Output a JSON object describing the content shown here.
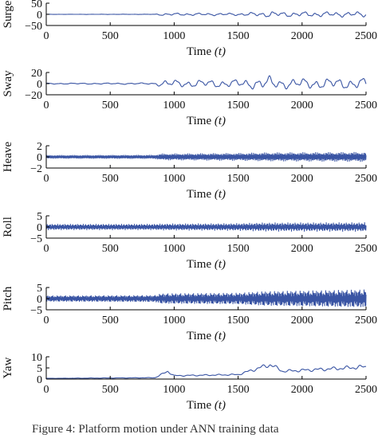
{
  "figure": {
    "caption": "F‍igure 4: Platform motion under ANN training data"
  },
  "chart_data": [
    {
      "type": "line",
      "ylabel": "Surge",
      "xlabel": "Time",
      "xlabel_var": "(t)",
      "xlim": [
        0,
        2500
      ],
      "ylim": [
        -50,
        50
      ],
      "xticks": [
        "0",
        "500",
        "1000",
        "1500",
        "2000",
        "2500"
      ],
      "yticks": [
        "50",
        "0",
        "−50"
      ],
      "ytick_values": [
        50,
        0,
        -50
      ],
      "series": [
        {
          "color": "#3a55a4",
          "amplitude_profile": [
            [
              0,
              0.5
            ],
            [
              850,
              0.8
            ],
            [
              900,
              6
            ],
            [
              1500,
              6
            ],
            [
              1700,
              12
            ],
            [
              1760,
              16
            ],
            [
              1800,
              12
            ],
            [
              2500,
              13
            ]
          ],
          "waves": [
            [
              0.012,
              0
            ],
            [
              0.005,
              1.3
            ],
            [
              0.03,
              2.1
            ]
          ]
        }
      ]
    },
    {
      "type": "line",
      "ylabel": "Sway",
      "xlabel": "Time",
      "xlabel_var": "(t)",
      "xlim": [
        0,
        2500
      ],
      "ylim": [
        -20,
        20
      ],
      "xticks": [
        "0",
        "500",
        "1000",
        "1500",
        "2000",
        "2500"
      ],
      "yticks": [
        "20",
        "0",
        "−20"
      ],
      "ytick_values": [
        20,
        0,
        -20
      ],
      "series": [
        {
          "color": "#3a55a4",
          "amplitude_profile": [
            [
              0,
              1
            ],
            [
              850,
              1.5
            ],
            [
              900,
              7
            ],
            [
              1500,
              8
            ],
            [
              1700,
              12
            ],
            [
              1760,
              15
            ],
            [
              1800,
              10
            ],
            [
              2500,
              11
            ]
          ],
          "waves": [
            [
              0.011,
              0.4
            ],
            [
              0.004,
              1.9
            ],
            [
              0.027,
              0.8
            ]
          ]
        }
      ]
    },
    {
      "type": "line",
      "ylabel": "Heave",
      "xlabel": "Time",
      "xlabel_var": "(t)",
      "xlim": [
        0,
        2500
      ],
      "ylim": [
        -2,
        2
      ],
      "xticks": [
        "0",
        "500",
        "1000",
        "1500",
        "2000",
        "2500"
      ],
      "yticks": [
        "2",
        "0",
        "−2"
      ],
      "ytick_values": [
        2,
        0,
        -2
      ],
      "series": [
        {
          "color": "#3a55a4",
          "amplitude_profile": [
            [
              0,
              0.3
            ],
            [
              850,
              0.35
            ],
            [
              900,
              0.6
            ],
            [
              1500,
              0.7
            ],
            [
              1700,
              0.8
            ],
            [
              2500,
              0.9
            ]
          ],
          "waves": [
            [
              0.21,
              0
            ],
            [
              0.35,
              1.1
            ],
            [
              0.13,
              2.4
            ]
          ]
        }
      ]
    },
    {
      "type": "line",
      "ylabel": "Roll",
      "xlabel": "Time",
      "xlabel_var": "(t)",
      "xlim": [
        0,
        2500
      ],
      "ylim": [
        -5,
        5
      ],
      "xticks": [
        "0",
        "500",
        "1000",
        "1500",
        "2000",
        "2500"
      ],
      "yticks": [
        "5",
        "0",
        "−5"
      ],
      "ytick_values": [
        5,
        0,
        -5
      ],
      "series": [
        {
          "color": "#3a55a4",
          "amplitude_profile": [
            [
              0,
              1.3
            ],
            [
              850,
              1.3
            ],
            [
              900,
              1.4
            ],
            [
              1500,
              1.6
            ],
            [
              1700,
              1.9
            ],
            [
              2500,
              2
            ]
          ],
          "waves": [
            [
              0.16,
              0
            ],
            [
              0.27,
              0.9
            ],
            [
              0.09,
              1.7
            ]
          ]
        }
      ]
    },
    {
      "type": "line",
      "ylabel": "Pitch",
      "xlabel": "Time",
      "xlabel_var": "(t)",
      "xlim": [
        0,
        2500
      ],
      "ylim": [
        -5,
        5
      ],
      "xticks": [
        "0",
        "500",
        "1000",
        "1500",
        "2000",
        "2500"
      ],
      "yticks": [
        "5",
        "0",
        "−5"
      ],
      "ytick_values": [
        5,
        0,
        -5
      ],
      "series": [
        {
          "color": "#3a55a4",
          "amplitude_profile": [
            [
              0,
              1.4
            ],
            [
              850,
              1.6
            ],
            [
              900,
              2.5
            ],
            [
              1500,
              2.8
            ],
            [
              1700,
              3.6
            ],
            [
              2100,
              4
            ],
            [
              2500,
              4.5
            ]
          ],
          "waves": [
            [
              0.18,
              0.2
            ],
            [
              0.31,
              1.4
            ],
            [
              0.07,
              2.9
            ]
          ]
        }
      ]
    },
    {
      "type": "line",
      "ylabel": "Yaw",
      "xlabel": "Time",
      "xlabel_var": "(t)",
      "xlim": [
        0,
        2500
      ],
      "ylim": [
        0,
        10
      ],
      "xticks": [
        "0",
        "500",
        "1000",
        "1500",
        "2000",
        "2500"
      ],
      "yticks": [
        "10",
        "5",
        "0"
      ],
      "ytick_values": [
        10,
        5,
        0
      ],
      "series": [
        {
          "color": "#3a55a4",
          "baseline_profile": [
            [
              0,
              0.3
            ],
            [
              850,
              0.6
            ],
            [
              950,
              3.5
            ],
            [
              1000,
              1.5
            ],
            [
              1500,
              2
            ],
            [
              1750,
              6.5
            ],
            [
              1850,
              3.5
            ],
            [
              2200,
              4.5
            ],
            [
              2500,
              5.5
            ]
          ],
          "waves": [
            [
              0.009,
              0.6
            ],
            [
              0.02,
              1.7
            ],
            [
              0.004,
              2.2
            ]
          ]
        }
      ]
    }
  ]
}
